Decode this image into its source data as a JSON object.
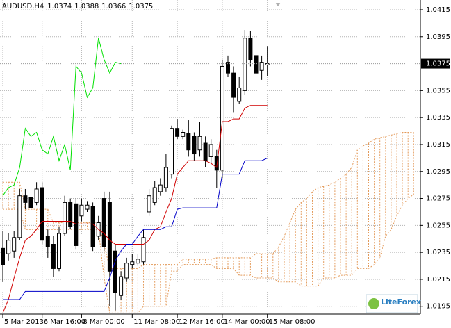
{
  "chart_data": {
    "type": "candlestick",
    "symbol": "AUDUSD,H4",
    "logo": "LiteForex",
    "categories": [
      "5 Mar 2013",
      null,
      null,
      null,
      null,
      null,
      null,
      "6 Mar 16:00",
      null,
      null,
      null,
      null,
      null,
      null,
      "8 Mar 00:00",
      null,
      null,
      null,
      null,
      null,
      null,
      null,
      null,
      "11 Mar 08:00",
      null,
      null,
      null,
      null,
      null,
      null,
      null,
      "12 Mar 16:00",
      null,
      null,
      null,
      null,
      null,
      null,
      null,
      "14 Mar 00:00",
      null,
      null,
      null,
      null,
      null,
      null,
      null,
      "15 Mar 08:00",
      null,
      null,
      null,
      null,
      null,
      null,
      null,
      null,
      null,
      null,
      null,
      null,
      null,
      null,
      null,
      null,
      null,
      null,
      null,
      null,
      null,
      null,
      null,
      null,
      null,
      null
    ],
    "open": [
      1.0238,
      1.0234,
      1.0236,
      1.0246,
      1.0277,
      1.0276,
      1.0272,
      1.0283,
      1.0247,
      1.0241,
      1.0223,
      1.0249,
      1.0272,
      1.0271,
      1.0262,
      1.0267,
      1.0269,
      1.0247,
      1.0275,
      1.0272,
      1.0236,
      1.0203,
      1.0216,
      1.0226,
      1.0227,
      1.0228,
      1.0265,
      1.0272,
      1.028,
      1.0283,
      1.0293,
      1.0327,
      1.0321,
      1.0323,
      1.0321,
      1.0311,
      1.0316,
      1.0306,
      1.0306,
      1.0296,
      1.0376,
      1.0368,
      1.0347,
      1.0355,
      1.0394,
      1.0381,
      1.037,
      1.0374,
      null,
      null,
      null,
      null,
      null,
      null,
      null,
      null,
      null,
      null,
      null,
      null,
      null,
      null,
      null,
      null,
      null,
      null,
      null,
      null,
      null,
      null,
      null,
      null,
      null,
      null
    ],
    "high": [
      1.0251,
      1.0249,
      1.0251,
      1.0282,
      1.0282,
      1.028,
      1.0287,
      1.0287,
      1.0252,
      1.0247,
      1.0254,
      1.0277,
      1.0275,
      1.0275,
      1.0275,
      1.0273,
      1.0272,
      1.0262,
      1.028,
      1.028,
      1.0241,
      1.0221,
      1.0231,
      1.0234,
      1.0234,
      1.0252,
      1.0282,
      1.0288,
      1.029,
      1.0308,
      1.0329,
      1.0334,
      1.0326,
      1.0333,
      1.0324,
      1.0332,
      1.0321,
      1.0319,
      1.0311,
      1.0378,
      1.0381,
      1.0373,
      1.0365,
      1.04,
      1.0399,
      1.0386,
      1.0381,
      1.0388,
      null,
      null,
      null,
      null,
      null,
      null,
      null,
      null,
      null,
      null,
      null,
      null,
      null,
      null,
      null,
      null,
      null,
      null,
      null,
      null,
      null,
      null,
      null,
      null,
      null,
      null
    ],
    "low": [
      1.0213,
      1.0229,
      1.0231,
      1.0244,
      1.0267,
      1.0267,
      1.027,
      1.0241,
      1.0231,
      1.0217,
      1.0221,
      1.0247,
      1.0252,
      1.0237,
      1.0258,
      1.0265,
      1.0236,
      1.0244,
      1.0236,
      1.0195,
      1.0192,
      1.02,
      1.0213,
      1.0223,
      1.0225,
      1.0226,
      1.0262,
      1.027,
      1.0277,
      1.028,
      1.029,
      1.0319,
      1.0319,
      1.0306,
      1.0303,
      1.0306,
      1.0298,
      1.0301,
      1.0283,
      1.029,
      1.0365,
      1.0339,
      1.0345,
      1.0352,
      1.0373,
      1.0365,
      1.0363,
      1.0366,
      null,
      null,
      null,
      null,
      null,
      null,
      null,
      null,
      null,
      null,
      null,
      null,
      null,
      null,
      null,
      null,
      null,
      null,
      null,
      null,
      null,
      null,
      null,
      null,
      null,
      null
    ],
    "close": [
      1.0226,
      1.0244,
      1.0246,
      1.0277,
      1.0272,
      1.0268,
      1.0282,
      1.0244,
      1.0239,
      1.0223,
      1.0249,
      1.0272,
      1.0254,
      1.024,
      1.027,
      1.027,
      1.0239,
      1.0257,
      1.0239,
      1.0221,
      1.0205,
      1.0217,
      1.0227,
      1.0228,
      1.023,
      1.0246,
      1.0277,
      1.0283,
      1.0285,
      1.0298,
      1.0327,
      1.0321,
      1.0324,
      1.0311,
      1.0308,
      1.0321,
      1.0303,
      1.0315,
      1.0296,
      1.0373,
      1.0368,
      1.035,
      1.0357,
      1.0394,
      1.0378,
      1.0368,
      1.0376,
      1.0375,
      null,
      null,
      null,
      null,
      null,
      null,
      null,
      null,
      null,
      null,
      null,
      null,
      null,
      null,
      null,
      null,
      null,
      null,
      null,
      null,
      null,
      null,
      null,
      null,
      null,
      null
    ],
    "tenkan": [
      1.019,
      1.02,
      1.0216,
      1.0231,
      1.0244,
      1.0247,
      1.0252,
      1.0258,
      1.0258,
      1.0258,
      1.0258,
      1.0258,
      1.0258,
      1.0256,
      1.0256,
      1.0256,
      1.0256,
      1.0252,
      1.0249,
      1.0244,
      1.0241,
      1.0241,
      1.0241,
      1.0241,
      1.0241,
      1.0241,
      1.0244,
      1.0252,
      1.0254,
      1.0265,
      1.0275,
      1.0293,
      1.0298,
      1.0303,
      1.0303,
      1.0303,
      1.0303,
      1.0301,
      1.0298,
      1.0332,
      1.0332,
      1.0334,
      1.0334,
      1.0342,
      1.0344,
      1.0344,
      1.0344,
      1.0344,
      null,
      null,
      null,
      null,
      null,
      null,
      null,
      null,
      null,
      null,
      null,
      null,
      null,
      null,
      null,
      null,
      null,
      null,
      null,
      null,
      null,
      null,
      null,
      null,
      null,
      null
    ],
    "kijun": [
      1.02,
      1.02,
      1.02,
      1.02,
      1.0206,
      1.0206,
      1.0206,
      1.0206,
      1.0206,
      1.0206,
      1.0206,
      1.0206,
      1.0206,
      1.0206,
      1.0206,
      1.0206,
      1.0206,
      1.0206,
      1.0206,
      1.0216,
      1.0229,
      1.0236,
      1.0241,
      1.0241,
      1.0247,
      1.0252,
      1.0252,
      1.0252,
      1.0252,
      1.0254,
      1.0254,
      1.0267,
      1.0268,
      1.0268,
      1.0268,
      1.0268,
      1.0268,
      1.0268,
      1.0268,
      1.0293,
      1.0293,
      1.0293,
      1.0293,
      1.0303,
      1.0303,
      1.0303,
      1.0303,
      1.0305,
      null,
      null,
      null,
      null,
      null,
      null,
      null,
      null,
      null,
      null,
      null,
      null,
      null,
      null,
      null,
      null,
      null,
      null,
      null,
      null,
      null,
      null,
      null,
      null,
      null,
      null
    ],
    "chikou": [
      1.0277,
      1.0283,
      1.0285,
      1.0298,
      1.0327,
      1.0321,
      1.0324,
      1.0311,
      1.0308,
      1.0321,
      1.0303,
      1.0315,
      1.0296,
      1.0373,
      1.0368,
      1.035,
      1.0357,
      1.0394,
      1.0378,
      1.0368,
      1.0376,
      1.0375,
      null,
      null,
      null,
      null,
      null,
      null,
      null,
      null,
      null,
      null,
      null,
      null,
      null,
      null,
      null,
      null,
      null,
      null,
      null,
      null,
      null,
      null,
      null,
      null,
      null,
      null,
      null,
      null,
      null,
      null,
      null,
      null,
      null,
      null,
      null,
      null,
      null,
      null,
      null,
      null,
      null,
      null,
      null,
      null,
      null,
      null,
      null,
      null,
      null,
      null,
      null,
      null
    ],
    "senkou_a": [
      1.0287,
      1.0287,
      1.0287,
      1.0287,
      1.0267,
      1.0267,
      1.0267,
      1.0267,
      1.0267,
      1.0257,
      1.0257,
      1.0257,
      1.0257,
      1.0257,
      1.0257,
      1.0257,
      1.0257,
      1.0257,
      1.0241,
      1.0223,
      1.0223,
      1.0223,
      1.0223,
      1.0223,
      1.0223,
      1.0226,
      1.0226,
      1.0226,
      1.0226,
      1.0226,
      1.0226,
      1.0226,
      1.023,
      1.023,
      1.023,
      1.023,
      1.023,
      1.023,
      1.0231,
      1.0231,
      1.0231,
      1.0231,
      1.0231,
      1.0231,
      1.0231,
      1.0234,
      1.0234,
      1.0234,
      1.0234,
      1.0239,
      1.0247,
      1.0257,
      1.0267,
      1.0272,
      1.0275,
      1.028,
      1.0283,
      1.0284,
      1.0285,
      1.0287,
      1.029,
      1.0293,
      1.0298,
      1.0311,
      1.0314,
      1.0316,
      1.0319,
      1.032,
      1.0321,
      1.0322,
      1.0323,
      1.0324,
      1.0324,
      1.0324
    ],
    "senkou_b": [
      1.0267,
      1.0267,
      1.0267,
      1.0267,
      1.0252,
      1.0252,
      1.0252,
      1.0252,
      1.0252,
      1.0252,
      1.0252,
      1.0252,
      1.0252,
      1.0252,
      1.0252,
      1.0252,
      1.0252,
      1.0252,
      1.0216,
      1.019,
      1.019,
      1.019,
      1.019,
      1.019,
      1.019,
      1.0195,
      1.0195,
      1.0195,
      1.0195,
      1.0195,
      1.0221,
      1.0221,
      1.0226,
      1.0226,
      1.0226,
      1.0226,
      1.0226,
      1.0226,
      1.0223,
      1.0223,
      1.0223,
      1.0223,
      1.0218,
      1.0218,
      1.0218,
      1.0216,
      1.0216,
      1.0216,
      1.0216,
      1.0213,
      1.0213,
      1.0213,
      1.0213,
      1.021,
      1.021,
      1.021,
      1.021,
      1.0216,
      1.0216,
      1.0216,
      1.0218,
      1.0218,
      1.0218,
      1.0223,
      1.0223,
      1.0223,
      1.0226,
      1.0231,
      1.0247,
      1.0252,
      1.0262,
      1.027,
      1.0275,
      1.0278
    ],
    "colors": {
      "tenkan": "#d00000",
      "kijun": "#0000c8",
      "chikou": "#00e000",
      "cloud": "#e39a5a",
      "candle": "#000000"
    },
    "ylim": [
      1.01892,
      1.04222
    ],
    "yticks": [
      1.0195,
      1.0215,
      1.0235,
      1.0255,
      1.0275,
      1.0295,
      1.0315,
      1.0335,
      1.0355,
      1.0395,
      1.0415
    ],
    "grid": true
  }
}
